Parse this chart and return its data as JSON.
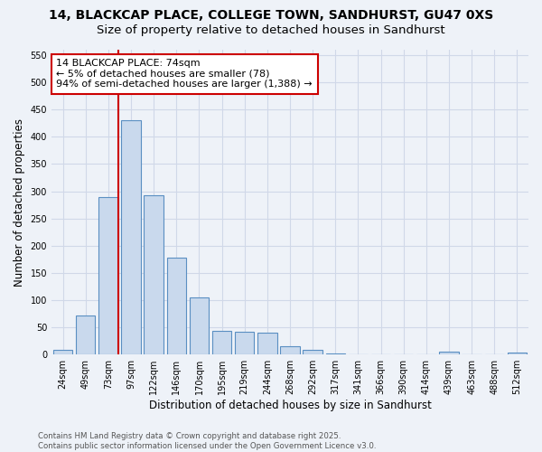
{
  "title_line1": "14, BLACKCAP PLACE, COLLEGE TOWN, SANDHURST, GU47 0XS",
  "title_line2": "Size of property relative to detached houses in Sandhurst",
  "xlabel": "Distribution of detached houses by size in Sandhurst",
  "ylabel": "Number of detached properties",
  "categories": [
    "24sqm",
    "49sqm",
    "73sqm",
    "97sqm",
    "122sqm",
    "146sqm",
    "170sqm",
    "195sqm",
    "219sqm",
    "244sqm",
    "268sqm",
    "292sqm",
    "317sqm",
    "341sqm",
    "366sqm",
    "390sqm",
    "414sqm",
    "439sqm",
    "463sqm",
    "488sqm",
    "512sqm"
  ],
  "values": [
    8,
    72,
    290,
    430,
    292,
    178,
    105,
    44,
    42,
    40,
    16,
    9,
    2,
    0,
    0,
    0,
    0,
    5,
    0,
    0,
    3
  ],
  "bar_color": "#c9d9ed",
  "bar_edge_color": "#5a8fc2",
  "vline_x_index": 2,
  "vline_color": "#cc0000",
  "annotation_text": "14 BLACKCAP PLACE: 74sqm\n← 5% of detached houses are smaller (78)\n94% of semi-detached houses are larger (1,388) →",
  "annotation_box_color": "#ffffff",
  "annotation_box_edge_color": "#cc0000",
  "ylim": [
    0,
    560
  ],
  "yticks": [
    0,
    50,
    100,
    150,
    200,
    250,
    300,
    350,
    400,
    450,
    500,
    550
  ],
  "grid_color": "#d0d8e8",
  "background_color": "#eef2f8",
  "footer_text": "Contains HM Land Registry data © Crown copyright and database right 2025.\nContains public sector information licensed under the Open Government Licence v3.0.",
  "title_fontsize": 10,
  "subtitle_fontsize": 9.5,
  "tick_fontsize": 7,
  "label_fontsize": 8.5,
  "annotation_fontsize": 8
}
